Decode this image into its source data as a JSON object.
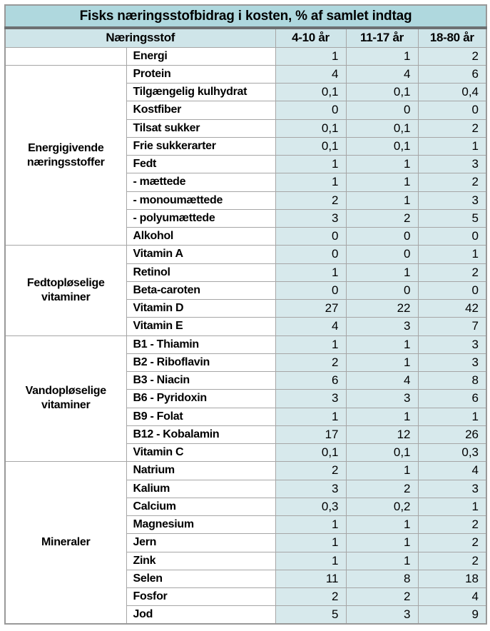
{
  "table": {
    "title": "Fisks næringsstofbidrag i kosten, % af samlet indtag",
    "columns": [
      "Næringsstof",
      "4-10 år",
      "11-17 år",
      "18-80 år"
    ],
    "groups": [
      {
        "label": "",
        "rows": [
          {
            "name": "Energi",
            "values": [
              "1",
              "1",
              "2"
            ]
          }
        ]
      },
      {
        "label": "Energigivende næringsstoffer",
        "rows": [
          {
            "name": "Protein",
            "values": [
              "4",
              "4",
              "6"
            ]
          },
          {
            "name": "Tilgængelig kulhydrat",
            "values": [
              "0,1",
              "0,1",
              "0,4"
            ]
          },
          {
            "name": "Kostfiber",
            "values": [
              "0",
              "0",
              "0"
            ]
          },
          {
            "name": "Tilsat sukker",
            "values": [
              "0,1",
              "0,1",
              "2"
            ]
          },
          {
            "name": "Frie sukkerarter",
            "values": [
              "0,1",
              "0,1",
              "1"
            ]
          },
          {
            "name": "Fedt",
            "values": [
              "1",
              "1",
              "3"
            ]
          },
          {
            "name": "- mættede",
            "values": [
              "1",
              "1",
              "2"
            ]
          },
          {
            "name": "- monoumættede",
            "values": [
              "2",
              "1",
              "3"
            ]
          },
          {
            "name": "- polyumættede",
            "values": [
              "3",
              "2",
              "5"
            ]
          },
          {
            "name": "Alkohol",
            "values": [
              "0",
              "0",
              "0"
            ]
          }
        ]
      },
      {
        "label": "Fedtopløselige vitaminer",
        "rows": [
          {
            "name": "Vitamin A",
            "values": [
              "0",
              "0",
              "1"
            ]
          },
          {
            "name": "Retinol",
            "values": [
              "1",
              "1",
              "2"
            ]
          },
          {
            "name": "Beta-caroten",
            "values": [
              "0",
              "0",
              "0"
            ]
          },
          {
            "name": "Vitamin D",
            "values": [
              "27",
              "22",
              "42"
            ]
          },
          {
            "name": "Vitamin E",
            "values": [
              "4",
              "3",
              "7"
            ]
          }
        ]
      },
      {
        "label": "Vandopløselige vitaminer",
        "rows": [
          {
            "name": "B1 - Thiamin",
            "values": [
              "1",
              "1",
              "3"
            ]
          },
          {
            "name": "B2 - Riboflavin",
            "values": [
              "2",
              "1",
              "3"
            ]
          },
          {
            "name": "B3 - Niacin",
            "values": [
              "6",
              "4",
              "8"
            ]
          },
          {
            "name": "B6 - Pyridoxin",
            "values": [
              "3",
              "3",
              "6"
            ]
          },
          {
            "name": "B9 - Folat",
            "values": [
              "1",
              "1",
              "1"
            ]
          },
          {
            "name": "B12 - Kobalamin",
            "values": [
              "17",
              "12",
              "26"
            ]
          },
          {
            "name": "Vitamin C",
            "values": [
              "0,1",
              "0,1",
              "0,3"
            ]
          }
        ]
      },
      {
        "label": "Mineraler",
        "rows": [
          {
            "name": "Natrium",
            "values": [
              "2",
              "1",
              "4"
            ]
          },
          {
            "name": "Kalium",
            "values": [
              "3",
              "2",
              "3"
            ]
          },
          {
            "name": "Calcium",
            "values": [
              "0,3",
              "0,2",
              "1"
            ]
          },
          {
            "name": "Magnesium",
            "values": [
              "1",
              "1",
              "2"
            ]
          },
          {
            "name": "Jern",
            "values": [
              "1",
              "1",
              "2"
            ]
          },
          {
            "name": "Zink",
            "values": [
              "1",
              "1",
              "2"
            ]
          },
          {
            "name": "Selen",
            "values": [
              "11",
              "8",
              "18"
            ]
          },
          {
            "name": "Fosfor",
            "values": [
              "2",
              "2",
              "4"
            ]
          },
          {
            "name": "Jod",
            "values": [
              "5",
              "3",
              "9"
            ]
          }
        ]
      }
    ],
    "colors": {
      "title_bg": "#afd8de",
      "separator_band": "#6c7072",
      "header_bg": "#cfe5e9",
      "value_cell_bg": "#d7e9ec",
      "label_cell_bg": "#ffffff",
      "grid_border": "#a6a6a6",
      "outer_border": "#999999",
      "text": "#000000"
    }
  }
}
